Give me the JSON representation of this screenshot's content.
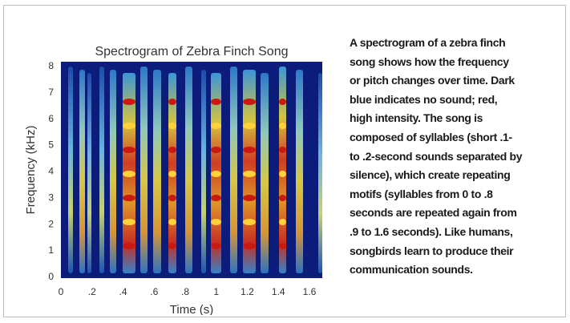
{
  "figure": {
    "title": "Spectrogram of Zebra Finch Song",
    "x_axis": {
      "label": "Time (s)",
      "ticks": [
        "0",
        ".2",
        ".4",
        ".6",
        ".8",
        "1",
        "1.2",
        "1.4",
        "1.6"
      ]
    },
    "y_axis": {
      "label": "Frequency (kHz)",
      "ticks": [
        "0",
        "1",
        "2",
        "3",
        "4",
        "5",
        "6",
        "7",
        "8"
      ]
    }
  },
  "caption": {
    "lines": [
      "A spectrogram of a zebra finch",
      "song shows how the frequency",
      "or pitch changes over time. Dark",
      "blue indicates no sound; red,",
      "high intensity. The song is",
      "composed of syllables (short .1-",
      "to .2-second sounds separated by",
      "silence), which create repeating",
      "motifs (syllables from 0 to .8",
      "seconds are repeated again from",
      ".9 to 1.6 seconds). Like humans,",
      "songbirds learn to produce their",
      "communication sounds."
    ]
  }
}
